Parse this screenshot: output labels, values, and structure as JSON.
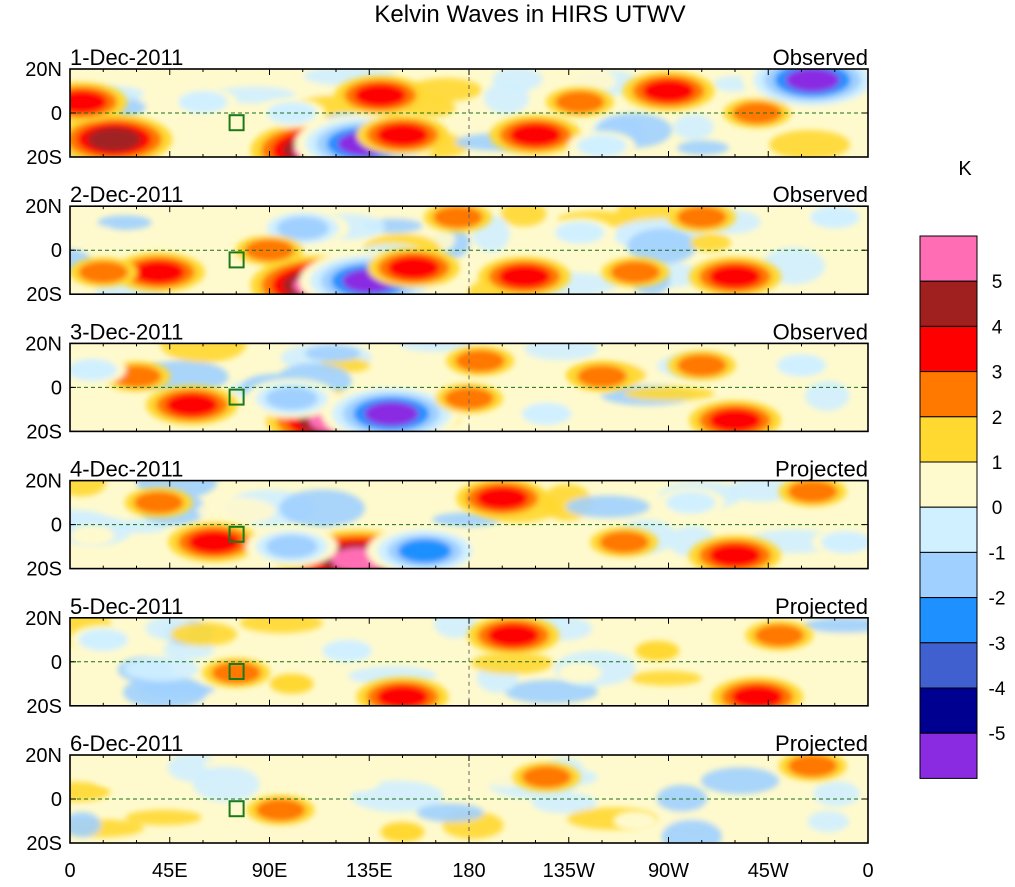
{
  "chart_data": {
    "type": "heatmap",
    "title": "Kelvin Waves in HIRS UTWV",
    "units": "K",
    "x_tick_labels": [
      "0",
      "45E",
      "90E",
      "135E",
      "180",
      "135W",
      "90W",
      "45W",
      "0"
    ],
    "x_tick_lon": [
      0,
      45,
      90,
      135,
      180,
      225,
      270,
      315,
      360
    ],
    "x_range": [
      0,
      360
    ],
    "y_tick_labels": [
      "20N",
      "0",
      "20S"
    ],
    "y_tick_lat": [
      20,
      0,
      -20
    ],
    "y_range": [
      -20,
      20
    ],
    "colorbar": {
      "labels": [
        "5",
        "4",
        "3",
        "2",
        "1",
        "0",
        "-1",
        "-2",
        "-3",
        "-4",
        "-5"
      ],
      "levels": [
        5,
        4,
        3,
        2,
        1,
        0,
        -1,
        -2,
        -3,
        -4,
        -5
      ],
      "colors": [
        "#ff6eb4",
        "#a02020",
        "#ff0000",
        "#ff7800",
        "#ffd830",
        "#fffacd",
        "#d0f0ff",
        "#a0d0ff",
        "#1e90ff",
        "#4060d0",
        "#000090",
        "#8a2be2"
      ]
    },
    "panels": [
      {
        "date": "1-Dec-2011",
        "status": "Observed",
        "anomalies": [
          {
            "lon": 113,
            "lat": -17,
            "value": 5
          },
          {
            "lon": 133,
            "lat": -14,
            "value": -5
          },
          {
            "lon": 20,
            "lat": -12,
            "value": 4
          },
          {
            "lon": 140,
            "lat": 8,
            "value": 3
          },
          {
            "lon": 60,
            "lat": 5,
            "value": -2
          },
          {
            "lon": 150,
            "lat": -10,
            "value": 3
          },
          {
            "lon": 210,
            "lat": -10,
            "value": 3
          },
          {
            "lon": 230,
            "lat": 5,
            "value": 2
          },
          {
            "lon": 270,
            "lat": 10,
            "value": 3
          },
          {
            "lon": 335,
            "lat": 15,
            "value": -5
          },
          {
            "lon": 310,
            "lat": 0,
            "value": 2
          },
          {
            "lon": 100,
            "lat": 0,
            "value": -2
          },
          {
            "lon": 240,
            "lat": -15,
            "value": -2
          },
          {
            "lon": 5,
            "lat": 5,
            "value": 3
          }
        ]
      },
      {
        "date": "2-Dec-2011",
        "status": "Observed",
        "anomalies": [
          {
            "lon": 113,
            "lat": -16,
            "value": 5
          },
          {
            "lon": 135,
            "lat": -14,
            "value": -5
          },
          {
            "lon": 40,
            "lat": -10,
            "value": 3
          },
          {
            "lon": 15,
            "lat": -10,
            "value": 2
          },
          {
            "lon": 105,
            "lat": 10,
            "value": -3
          },
          {
            "lon": 155,
            "lat": -8,
            "value": 3
          },
          {
            "lon": 205,
            "lat": -12,
            "value": 3
          },
          {
            "lon": 255,
            "lat": -10,
            "value": 2
          },
          {
            "lon": 300,
            "lat": -12,
            "value": 3
          },
          {
            "lon": 285,
            "lat": 15,
            "value": 2
          },
          {
            "lon": 345,
            "lat": 15,
            "value": -2
          },
          {
            "lon": 230,
            "lat": 8,
            "value": -2
          },
          {
            "lon": 175,
            "lat": 15,
            "value": 2
          },
          {
            "lon": 90,
            "lat": 0,
            "value": 2
          }
        ]
      },
      {
        "date": "3-Dec-2011",
        "status": "Observed",
        "anomalies": [
          {
            "lon": 120,
            "lat": -15,
            "value": 5
          },
          {
            "lon": 145,
            "lat": -12,
            "value": -5
          },
          {
            "lon": 55,
            "lat": -8,
            "value": 3
          },
          {
            "lon": 100,
            "lat": -5,
            "value": -3
          },
          {
            "lon": 30,
            "lat": 5,
            "value": 2
          },
          {
            "lon": 180,
            "lat": -5,
            "value": 2
          },
          {
            "lon": 185,
            "lat": 12,
            "value": 2
          },
          {
            "lon": 300,
            "lat": -15,
            "value": 3
          },
          {
            "lon": 285,
            "lat": 10,
            "value": 2
          },
          {
            "lon": 330,
            "lat": 10,
            "value": -2
          },
          {
            "lon": 240,
            "lat": 5,
            "value": 2
          },
          {
            "lon": 10,
            "lat": 8,
            "value": -2
          },
          {
            "lon": 215,
            "lat": -12,
            "value": -2
          }
        ]
      },
      {
        "date": "4-Dec-2011",
        "status": "Projected",
        "anomalies": [
          {
            "lon": 130,
            "lat": -16,
            "value": 5
          },
          {
            "lon": 160,
            "lat": -12,
            "value": -4
          },
          {
            "lon": 65,
            "lat": -8,
            "value": 3
          },
          {
            "lon": 100,
            "lat": -10,
            "value": -3
          },
          {
            "lon": 195,
            "lat": 12,
            "value": 3
          },
          {
            "lon": 300,
            "lat": -14,
            "value": 3
          },
          {
            "lon": 335,
            "lat": 15,
            "value": 2
          },
          {
            "lon": 250,
            "lat": -8,
            "value": 2
          },
          {
            "lon": 40,
            "lat": 10,
            "value": 2
          },
          {
            "lon": 280,
            "lat": 10,
            "value": -2
          },
          {
            "lon": 10,
            "lat": -5,
            "value": -1
          },
          {
            "lon": 350,
            "lat": -8,
            "value": -2
          }
        ]
      },
      {
        "date": "5-Dec-2011",
        "status": "Projected",
        "anomalies": [
          {
            "lon": 75,
            "lat": -5,
            "value": 2
          },
          {
            "lon": 150,
            "lat": -16,
            "value": 3
          },
          {
            "lon": 200,
            "lat": 12,
            "value": 3
          },
          {
            "lon": 320,
            "lat": 12,
            "value": 2
          },
          {
            "lon": 310,
            "lat": -16,
            "value": 3
          },
          {
            "lon": 125,
            "lat": 5,
            "value": -2
          },
          {
            "lon": 15,
            "lat": 10,
            "value": -2
          },
          {
            "lon": 265,
            "lat": 5,
            "value": 1
          },
          {
            "lon": 100,
            "lat": -10,
            "value": 1
          },
          {
            "lon": 230,
            "lat": -5,
            "value": -1
          }
        ]
      },
      {
        "date": "6-Dec-2011",
        "status": "Projected",
        "anomalies": [
          {
            "lon": 95,
            "lat": -5,
            "value": 2
          },
          {
            "lon": 215,
            "lat": 10,
            "value": 2
          },
          {
            "lon": 335,
            "lat": 15,
            "value": 2
          },
          {
            "lon": 150,
            "lat": -15,
            "value": 1
          },
          {
            "lon": 20,
            "lat": 10,
            "value": -1
          },
          {
            "lon": 255,
            "lat": -10,
            "value": -1
          },
          {
            "lon": 130,
            "lat": 8,
            "value": -1
          }
        ]
      }
    ]
  }
}
